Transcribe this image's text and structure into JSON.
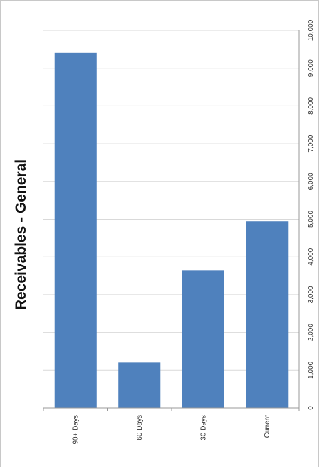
{
  "chart_data": {
    "type": "bar",
    "orientation": "rotated-90",
    "title": "Receivables - General",
    "categories": [
      "90+ Days",
      "60 Days",
      "30 Days",
      "Current"
    ],
    "values": [
      9400,
      1200,
      3650,
      4950
    ],
    "value_ticks": [
      "0",
      "1,000",
      "2,000",
      "3,000",
      "4,000",
      "5,000",
      "6,000",
      "7,000",
      "8,000",
      "9,000",
      "10,000"
    ],
    "ylim": [
      0,
      10000
    ],
    "grid": true,
    "bar_color": "#4f81bd",
    "grid_color": "#d9d9d9"
  }
}
